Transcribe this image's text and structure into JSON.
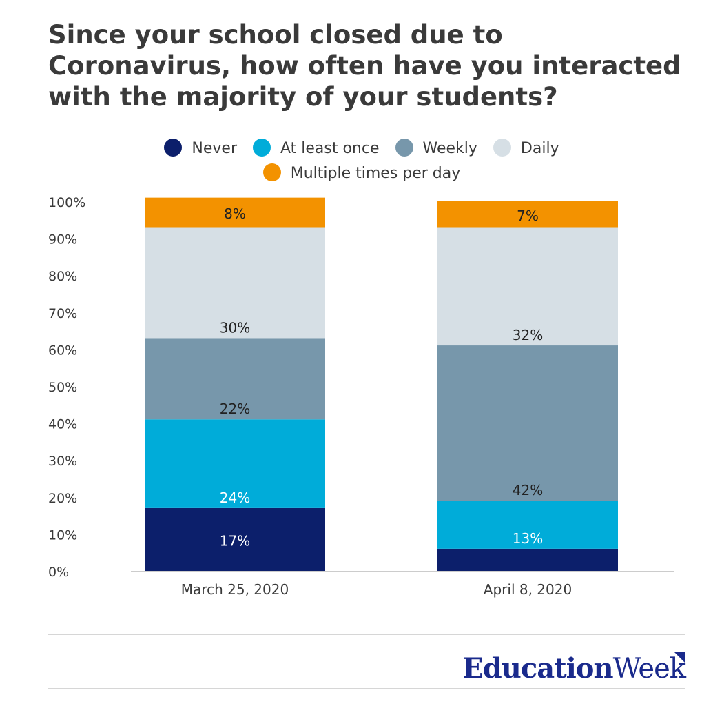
{
  "chart_data": {
    "type": "bar",
    "stacked": true,
    "title": "Since your school closed due to Coronavirus, how often have you interacted with the majority of your students?",
    "categories": [
      "March 25, 2020",
      "April 8, 2020"
    ],
    "series": [
      {
        "name": "Never",
        "color": "#0c1f6b",
        "values": [
          17,
          6
        ],
        "labels": [
          "17%",
          ""
        ]
      },
      {
        "name": "At least once",
        "color": "#00acd9",
        "values": [
          24,
          13
        ],
        "labels": [
          "24%",
          "13%"
        ]
      },
      {
        "name": "Weekly",
        "color": "#7797ab",
        "values": [
          22,
          42
        ],
        "labels": [
          "22%",
          "42%"
        ]
      },
      {
        "name": "Daily",
        "color": "#d6dfe5",
        "values": [
          30,
          32
        ],
        "labels": [
          "30%",
          "32%"
        ]
      },
      {
        "name": "Multiple times per day",
        "color": "#f39200",
        "values": [
          8,
          7
        ],
        "labels": [
          "8%",
          "7%"
        ]
      }
    ],
    "ylim": [
      0,
      100
    ],
    "yticks": [
      "0%",
      "10%",
      "20%",
      "30%",
      "40%",
      "50%",
      "60%",
      "70%",
      "80%",
      "90%",
      "100%"
    ],
    "legend": "top",
    "grid": false
  },
  "footer": {
    "logo_part1": "Education",
    "logo_part2": "Week"
  }
}
